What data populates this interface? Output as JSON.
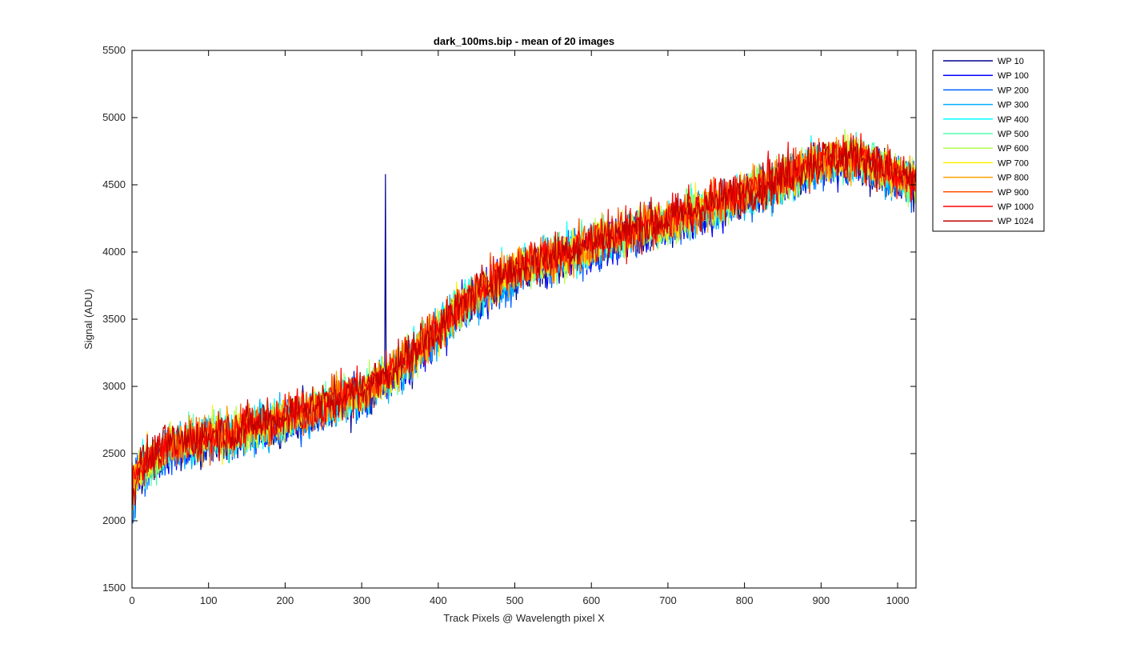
{
  "chart_data": {
    "type": "line",
    "title": "dark_100ms.bip - mean of 20 images",
    "xlabel": "Track Pixels @ Wavelength pixel X",
    "ylabel": "Signal (ADU)",
    "xlim": [
      0,
      1024
    ],
    "ylim": [
      1500,
      5500
    ],
    "xticks": [
      0,
      100,
      200,
      300,
      400,
      500,
      600,
      700,
      800,
      900,
      1000
    ],
    "yticks": [
      1500,
      2000,
      2500,
      3000,
      3500,
      4000,
      4500,
      5000,
      5500
    ],
    "grid": false,
    "legend_position": "outside-top-right",
    "trend": {
      "x": [
        0,
        50,
        100,
        150,
        200,
        250,
        300,
        350,
        400,
        450,
        500,
        550,
        600,
        650,
        700,
        750,
        800,
        850,
        900,
        950,
        1000,
        1024
      ],
      "y": [
        2350,
        2560,
        2620,
        2680,
        2760,
        2860,
        2960,
        3150,
        3420,
        3700,
        3860,
        3960,
        4060,
        4150,
        4230,
        4330,
        4440,
        4540,
        4680,
        4700,
        4560,
        4540
      ]
    },
    "noise_amplitude_adu": 150,
    "spike": {
      "series": "WP 10",
      "x": 331,
      "y": 4580
    },
    "series": [
      {
        "name": "WP 10",
        "color": "#00008F"
      },
      {
        "name": "WP 100",
        "color": "#0000FF"
      },
      {
        "name": "WP 200",
        "color": "#0060FF"
      },
      {
        "name": "WP 300",
        "color": "#00B0FF"
      },
      {
        "name": "WP 400",
        "color": "#00FFFF"
      },
      {
        "name": "WP 500",
        "color": "#50FFB0"
      },
      {
        "name": "WP 600",
        "color": "#B0FF50"
      },
      {
        "name": "WP 700",
        "color": "#FFF000"
      },
      {
        "name": "WP 800",
        "color": "#FFA000"
      },
      {
        "name": "WP 900",
        "color": "#FF5000"
      },
      {
        "name": "WP 1000",
        "color": "#FF0000"
      },
      {
        "name": "WP 1024",
        "color": "#C00000"
      }
    ]
  }
}
